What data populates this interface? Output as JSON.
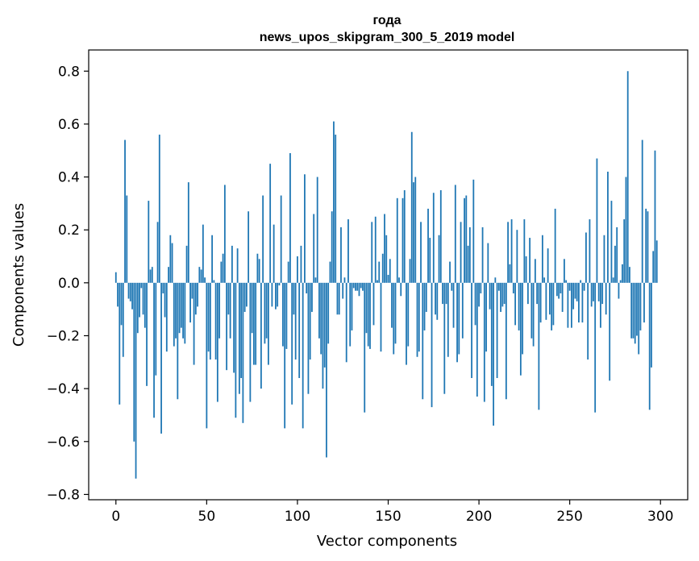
{
  "chart_data": {
    "type": "bar",
    "title_line1": "года",
    "title_line2": "news_upos_skipgram_300_5_2019 model",
    "xlabel": "Vector components",
    "ylabel": "Components values",
    "xlim": [
      -15,
      315
    ],
    "ylim": [
      -0.82,
      0.88
    ],
    "x_ticks": [
      0,
      50,
      100,
      150,
      200,
      250,
      300
    ],
    "y_ticks": [
      -0.8,
      -0.6,
      -0.4,
      -0.2,
      0.0,
      0.2,
      0.4,
      0.6,
      0.8
    ],
    "y_tick_labels": [
      "−0.8",
      "−0.6",
      "−0.4",
      "−0.2",
      "0.0",
      "0.2",
      "0.4",
      "0.6",
      "0.8"
    ],
    "bar_color": "#1f77b4",
    "values": [
      0.04,
      -0.09,
      -0.46,
      -0.16,
      -0.28,
      0.54,
      0.33,
      -0.06,
      -0.07,
      -0.1,
      -0.6,
      -0.74,
      -0.19,
      -0.13,
      -0.02,
      -0.12,
      -0.17,
      -0.39,
      0.31,
      0.05,
      0.06,
      -0.51,
      -0.35,
      0.23,
      0.56,
      -0.57,
      -0.04,
      -0.13,
      -0.26,
      0.06,
      0.18,
      0.15,
      -0.24,
      -0.21,
      -0.44,
      -0.19,
      -0.17,
      -0.21,
      -0.23,
      0.14,
      0.38,
      -0.15,
      -0.06,
      -0.31,
      -0.12,
      -0.09,
      0.06,
      0.05,
      0.22,
      0.02,
      -0.55,
      -0.26,
      -0.29,
      0.18,
      0.01,
      -0.29,
      -0.45,
      -0.21,
      0.08,
      0.11,
      0.37,
      -0.33,
      -0.12,
      -0.21,
      0.14,
      -0.34,
      -0.51,
      0.13,
      -0.42,
      -0.36,
      -0.53,
      -0.11,
      -0.09,
      0.27,
      -0.45,
      -0.19,
      -0.31,
      -0.31,
      0.11,
      0.09,
      -0.4,
      0.33,
      -0.23,
      -0.21,
      -0.31,
      0.45,
      -0.09,
      0.22,
      -0.1,
      -0.09,
      -0.01,
      0.33,
      -0.24,
      -0.55,
      -0.25,
      0.08,
      0.49,
      -0.46,
      -0.12,
      -0.29,
      0.1,
      -0.36,
      0.14,
      -0.55,
      0.41,
      -0.04,
      -0.42,
      -0.29,
      -0.11,
      0.26,
      0.02,
      0.4,
      -0.21,
      -0.27,
      -0.4,
      -0.32,
      -0.66,
      -0.23,
      0.08,
      0.27,
      0.61,
      0.56,
      -0.12,
      -0.12,
      0.21,
      -0.06,
      0.02,
      -0.3,
      0.24,
      -0.24,
      -0.18,
      -0.02,
      -0.03,
      -0.03,
      -0.05,
      -0.02,
      -0.03,
      -0.49,
      -0.19,
      -0.24,
      -0.25,
      0.23,
      -0.16,
      0.25,
      0.01,
      0.08,
      -0.26,
      0.11,
      0.26,
      0.18,
      0.03,
      0.09,
      -0.17,
      -0.27,
      -0.23,
      0.32,
      0.02,
      -0.05,
      0.32,
      0.35,
      -0.31,
      -0.24,
      0.09,
      0.57,
      0.38,
      0.4,
      -0.28,
      -0.26,
      0.23,
      -0.44,
      -0.18,
      -0.11,
      0.28,
      0.17,
      -0.47,
      0.34,
      -0.12,
      -0.14,
      0.18,
      0.35,
      -0.08,
      -0.42,
      -0.08,
      -0.28,
      0.08,
      -0.03,
      -0.17,
      0.37,
      -0.3,
      -0.27,
      0.23,
      -0.21,
      0.32,
      0.33,
      0.14,
      0.21,
      -0.36,
      0.39,
      -0.16,
      -0.43,
      -0.09,
      -0.04,
      0.21,
      -0.45,
      -0.26,
      0.15,
      -0.1,
      -0.39,
      -0.54,
      0.02,
      -0.36,
      -0.03,
      -0.11,
      -0.09,
      -0.08,
      -0.44,
      0.23,
      0.07,
      0.24,
      -0.04,
      -0.16,
      0.2,
      -0.18,
      -0.35,
      -0.27,
      0.24,
      0.1,
      -0.08,
      0.17,
      -0.21,
      -0.24,
      0.09,
      -0.08,
      -0.48,
      -0.15,
      0.18,
      0.02,
      -0.14,
      0.13,
      -0.12,
      -0.18,
      -0.16,
      0.28,
      -0.05,
      -0.06,
      -0.04,
      -0.11,
      0.09,
      0.01,
      -0.17,
      -0.03,
      -0.17,
      -0.1,
      -0.06,
      -0.07,
      -0.15,
      0.01,
      -0.15,
      -0.03,
      0.19,
      -0.29,
      0.24,
      -0.09,
      -0.07,
      -0.49,
      0.47,
      -0.07,
      -0.17,
      -0.08,
      0.18,
      -0.12,
      0.42,
      -0.37,
      0.31,
      0.02,
      0.14,
      0.21,
      -0.06,
      0.01,
      0.07,
      0.24,
      0.4,
      0.8,
      0.06,
      -0.21,
      -0.21,
      -0.23,
      -0.2,
      -0.27,
      -0.18,
      0.54,
      -0.15,
      0.28,
      0.27,
      -0.48,
      -0.32,
      0.12,
      0.5,
      0.16
    ]
  }
}
